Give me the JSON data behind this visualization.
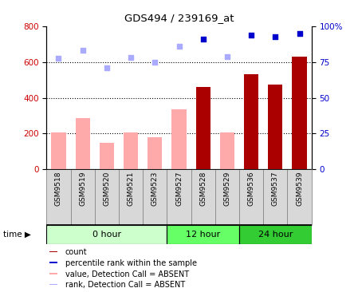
{
  "title": "GDS494 / 239169_at",
  "samples": [
    "GSM9518",
    "GSM9519",
    "GSM9520",
    "GSM9521",
    "GSM9523",
    "GSM9527",
    "GSM9528",
    "GSM9529",
    "GSM9536",
    "GSM9537",
    "GSM9539"
  ],
  "groups": [
    {
      "label": "0 hour",
      "indices": [
        0,
        1,
        2,
        3,
        4
      ],
      "color": "#ccffcc"
    },
    {
      "label": "12 hour",
      "indices": [
        5,
        6,
        7
      ],
      "color": "#66ff66"
    },
    {
      "label": "24 hour",
      "indices": [
        8,
        9,
        10
      ],
      "color": "#33cc33"
    }
  ],
  "bar_values": [
    null,
    null,
    null,
    null,
    null,
    null,
    460,
    null,
    530,
    475,
    630
  ],
  "bar_pink_values": [
    205,
    285,
    148,
    208,
    178,
    335,
    null,
    205,
    null,
    null,
    null
  ],
  "rank_dots_dark": [
    null,
    null,
    null,
    null,
    null,
    null,
    730,
    null,
    750,
    740,
    760
  ],
  "rank_dots_light": [
    620,
    665,
    570,
    627,
    600,
    690,
    null,
    628,
    null,
    null,
    null
  ],
  "ylim_left": [
    0,
    800
  ],
  "ylim_right": [
    0,
    100
  ],
  "yticks_left": [
    0,
    200,
    400,
    600,
    800
  ],
  "yticks_right": [
    0,
    25,
    50,
    75,
    100
  ],
  "ytick_labels_right": [
    "0",
    "25",
    "50",
    "75",
    "100%"
  ],
  "bar_color_dark": "#aa0000",
  "bar_color_pink": "#ffaaaa",
  "dot_color_dark": "#0000cc",
  "dot_color_light": "#aaaaff",
  "bg_color": "white",
  "axis_label_color_left": "#cc0000",
  "axis_label_color_right": "#0000cc",
  "gridline_yticks": [
    200,
    400,
    600
  ]
}
